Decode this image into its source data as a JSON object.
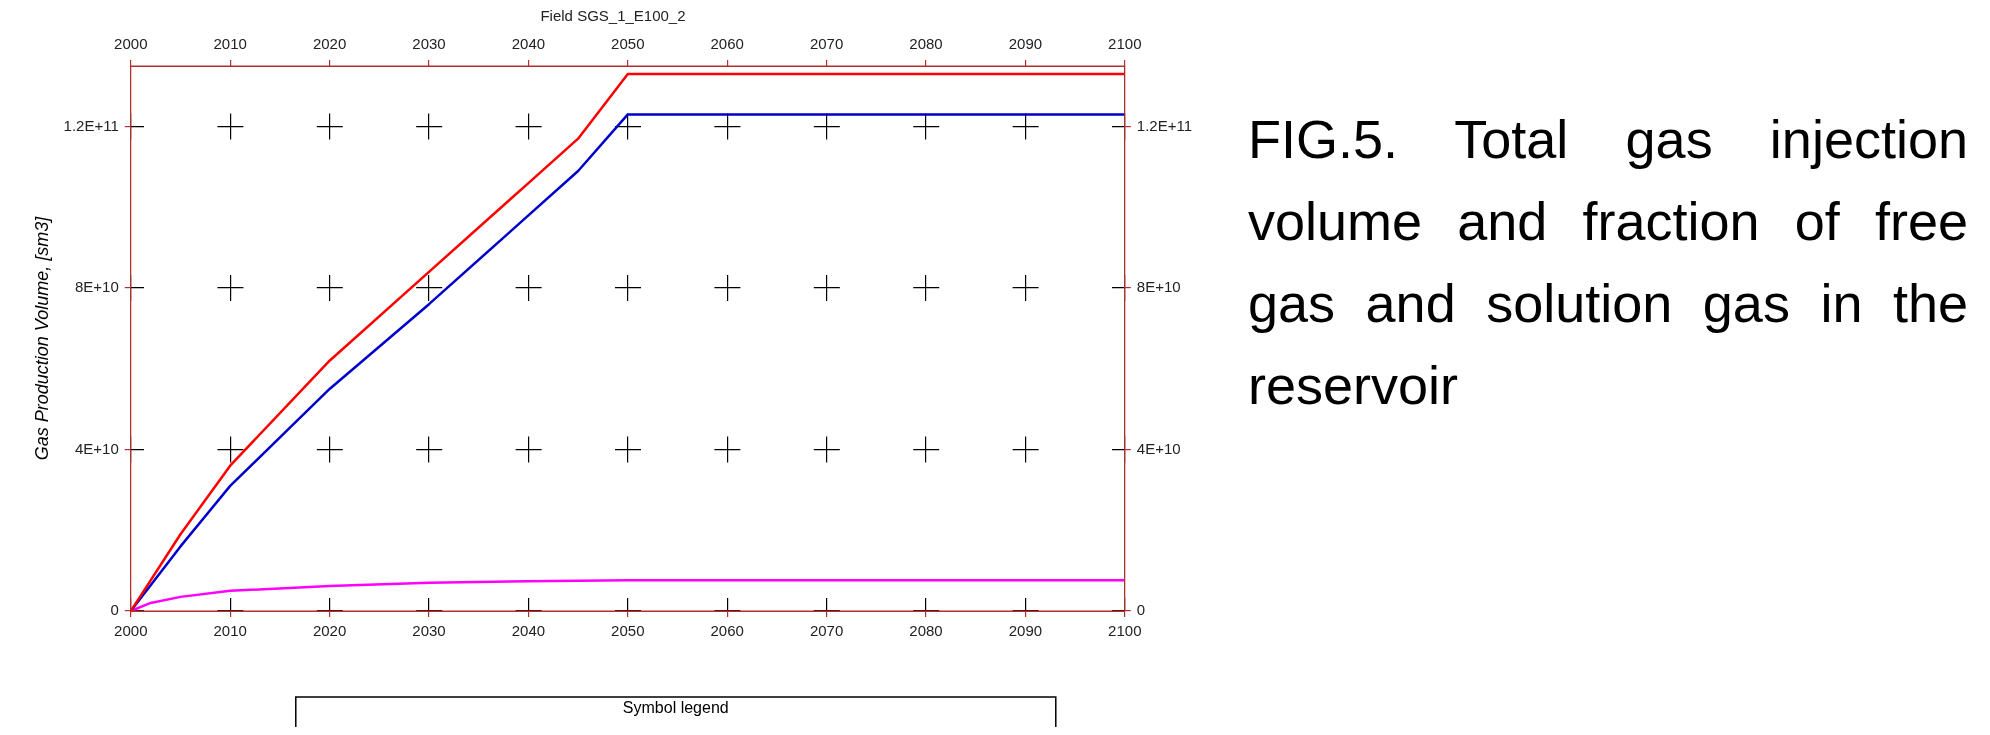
{
  "chart_data": {
    "type": "line",
    "title": "Field SGS_1_E100_2",
    "ylabel": "Gas Production Volume, [sm3]",
    "legend_title": "Symbol legend",
    "grid": true,
    "annotations": [
      "FIG.5. Total gas injection volume and fraction of free gas and solution gas in the reservoir"
    ],
    "xlim": [
      2000,
      2100
    ],
    "xticks": [
      2000,
      2010,
      2020,
      2030,
      2040,
      2050,
      2060,
      2070,
      2080,
      2090,
      2100
    ],
    "x2lim": [
      2000,
      2100
    ],
    "x2ticks": [
      2000,
      2010,
      2020,
      2030,
      2040,
      2050,
      2060,
      2070,
      2080,
      2090,
      2100
    ],
    "ylim": [
      0,
      135000000000
    ],
    "yticks": [
      0,
      {
        "value": 40000000000,
        "label": "4E+10"
      },
      {
        "value": 80000000000,
        "label": "8E+10"
      },
      {
        "value": 120000000000,
        "label": "1.2E+11"
      }
    ],
    "y2lim": [
      0,
      135000000000
    ],
    "y2ticks": [
      0,
      {
        "value": 40000000000,
        "label": "4E+10"
      },
      {
        "value": 80000000000,
        "label": "8E+10"
      },
      {
        "value": 120000000000,
        "label": "1.2E+11"
      }
    ],
    "series": [
      {
        "color": "#ff0000",
        "x": [
          2000,
          2005,
          2010,
          2020,
          2030,
          2040,
          2045,
          2050,
          2100
        ],
        "values": [
          0,
          19000000000,
          36000000000,
          62000000000,
          84000000000,
          106000000000,
          117000000000,
          133000000000,
          133000000000
        ]
      },
      {
        "color": "#0000cc",
        "x": [
          2000,
          2005,
          2010,
          2020,
          2030,
          2040,
          2045,
          2050,
          2100
        ],
        "values": [
          0,
          16000000000,
          31000000000,
          55000000000,
          76000000000,
          98000000000,
          109000000000,
          123000000000,
          123000000000
        ]
      },
      {
        "color": "#ff00ff",
        "x": [
          2000,
          2002,
          2005,
          2010,
          2020,
          2030,
          2040,
          2050,
          2100
        ],
        "values": [
          0,
          2000000000,
          3500000000,
          5000000000,
          6200000000,
          7000000000,
          7400000000,
          7600000000,
          7600000000
        ]
      }
    ]
  }
}
